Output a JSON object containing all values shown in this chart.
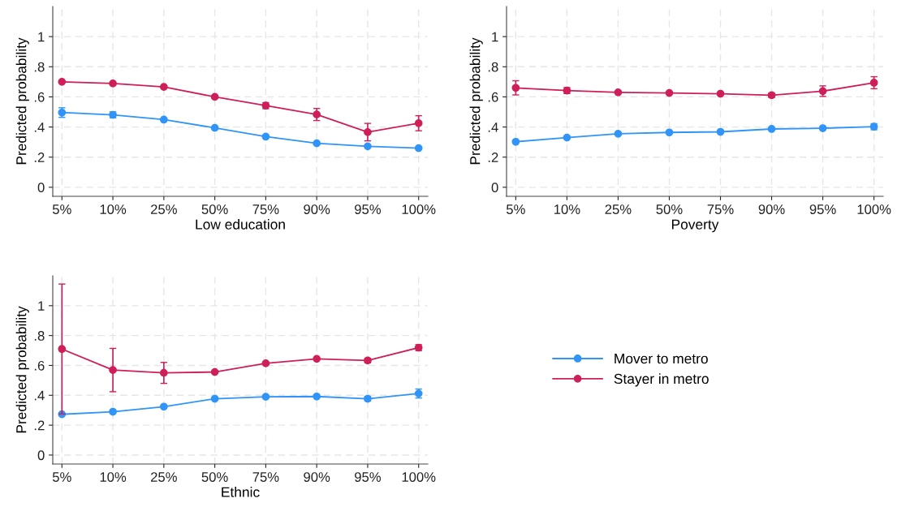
{
  "chart_data": [
    {
      "type": "line",
      "xlabel": "Low education",
      "ylabel": "Predicted probability",
      "categories": [
        "5%",
        "10%",
        "25%",
        "50%",
        "75%",
        "90%",
        "95%",
        "100%"
      ],
      "ylim": [
        -0.06,
        1.2
      ],
      "yticks": [
        0,
        {
          "value": 0.2,
          "label": ".2"
        },
        {
          "value": 0.4,
          "label": ".4"
        },
        {
          "value": 0.6,
          "label": ".6"
        },
        {
          "value": 0.8,
          "label": ".8"
        },
        1
      ],
      "grid": true,
      "marker": "circle",
      "series": [
        {
          "color": "#3094f8",
          "values": [
            0.496,
            0.481,
            0.449,
            0.394,
            0.336,
            0.292,
            0.272,
            0.26
          ],
          "errors": [
            0.032,
            0.02,
            null,
            null,
            null,
            null,
            null,
            null
          ]
        },
        {
          "color": "#cf1f59",
          "values": [
            0.7,
            0.689,
            0.666,
            0.6,
            0.542,
            0.483,
            0.366,
            0.425
          ],
          "errors": [
            null,
            null,
            null,
            null,
            0.02,
            0.04,
            0.058,
            0.05
          ]
        }
      ]
    },
    {
      "type": "line",
      "xlabel": "Poverty",
      "ylabel": "Predicted probability",
      "categories": [
        "5%",
        "10%",
        "25%",
        "50%",
        "75%",
        "90%",
        "95%",
        "100%"
      ],
      "ylim": [
        -0.06,
        1.2
      ],
      "yticks": [
        0,
        {
          "value": 0.2,
          "label": ".2"
        },
        {
          "value": 0.4,
          "label": ".4"
        },
        {
          "value": 0.6,
          "label": ".6"
        },
        {
          "value": 0.8,
          "label": ".8"
        },
        1
      ],
      "grid": true,
      "marker": "circle",
      "series": [
        {
          "color": "#3094f8",
          "values": [
            0.302,
            0.33,
            0.355,
            0.364,
            0.368,
            0.387,
            0.392,
            0.402
          ],
          "errors": [
            null,
            null,
            null,
            null,
            null,
            null,
            null,
            0.02
          ]
        },
        {
          "color": "#cf1f59",
          "values": [
            0.66,
            0.642,
            0.63,
            0.626,
            0.621,
            0.611,
            0.638,
            0.694
          ],
          "errors": [
            0.047,
            0.02,
            null,
            null,
            null,
            0.015,
            0.035,
            0.04
          ]
        }
      ]
    },
    {
      "type": "line",
      "xlabel": "Ethnic",
      "ylabel": "Predicted probability",
      "categories": [
        "5%",
        "10%",
        "25%",
        "50%",
        "75%",
        "90%",
        "95%",
        "100%"
      ],
      "ylim": [
        -0.06,
        1.2
      ],
      "yticks": [
        0,
        {
          "value": 0.2,
          "label": ".2"
        },
        {
          "value": 0.4,
          "label": ".4"
        },
        {
          "value": 0.6,
          "label": ".6"
        },
        {
          "value": 0.8,
          "label": ".8"
        },
        1
      ],
      "grid": true,
      "marker": "circle",
      "legend": "right",
      "series": [
        {
          "name": "Mover to metro",
          "color": "#3094f8",
          "values": [
            0.273,
            0.29,
            0.324,
            0.377,
            0.39,
            0.392,
            0.377,
            0.412
          ],
          "errors": [
            null,
            null,
            null,
            null,
            null,
            null,
            0.015,
            0.03
          ]
        },
        {
          "name": "Stayer in metro",
          "color": "#cf1f59",
          "values": [
            0.71,
            0.569,
            0.55,
            0.556,
            0.614,
            0.644,
            0.633,
            0.719
          ],
          "errors": [
            0.435,
            0.145,
            0.07,
            null,
            null,
            null,
            0.015,
            0.02
          ]
        }
      ]
    }
  ]
}
